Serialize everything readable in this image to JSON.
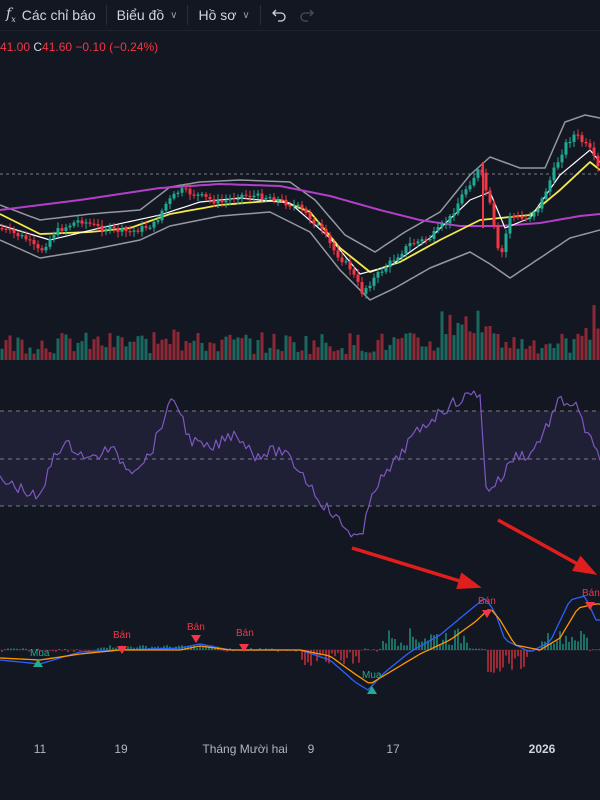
{
  "toolbar": {
    "indicators_label": "Các chỉ báo",
    "chart_type_label": "Biểu đồ",
    "profile_label": "Hồ sơ",
    "undo_icon": "undo-icon",
    "redo_icon": "redo-icon",
    "fx_icon": "function-icon"
  },
  "ohlc": {
    "low_value": "41.00",
    "close_label": "C",
    "close_value": "41.60",
    "change": "−0.10 (−0.24%)"
  },
  "x_axis": {
    "labels": [
      {
        "text": "11",
        "bold": false
      },
      {
        "text": "19",
        "bold": false
      },
      {
        "text": "Tháng Mười hai",
        "bold": false
      },
      {
        "text": "9",
        "bold": false
      },
      {
        "text": "17",
        "bold": false
      },
      {
        "text": "2026",
        "bold": true
      }
    ]
  },
  "signals": [
    {
      "text": "Mua",
      "type": "buy"
    },
    {
      "text": "Bán",
      "type": "sell"
    },
    {
      "text": "Bán",
      "type": "sell"
    },
    {
      "text": "Bán",
      "type": "sell"
    },
    {
      "text": "Mua",
      "type": "buy"
    },
    {
      "text": "Bán",
      "type": "sell"
    },
    {
      "text": "Bán",
      "type": "sell"
    }
  ],
  "colors": {
    "background": "#131722",
    "up": "#22ab94",
    "down": "#f23645",
    "bollinger": "#9598a1",
    "ma_fast": "#ffffff",
    "ma_mid": "#f5e94c",
    "ma_slow": "#b33fc8",
    "rsi": "#7e57c2",
    "macd": "#2962ff",
    "signal": "#ff9800",
    "arrow": "#e01e1e"
  }
}
